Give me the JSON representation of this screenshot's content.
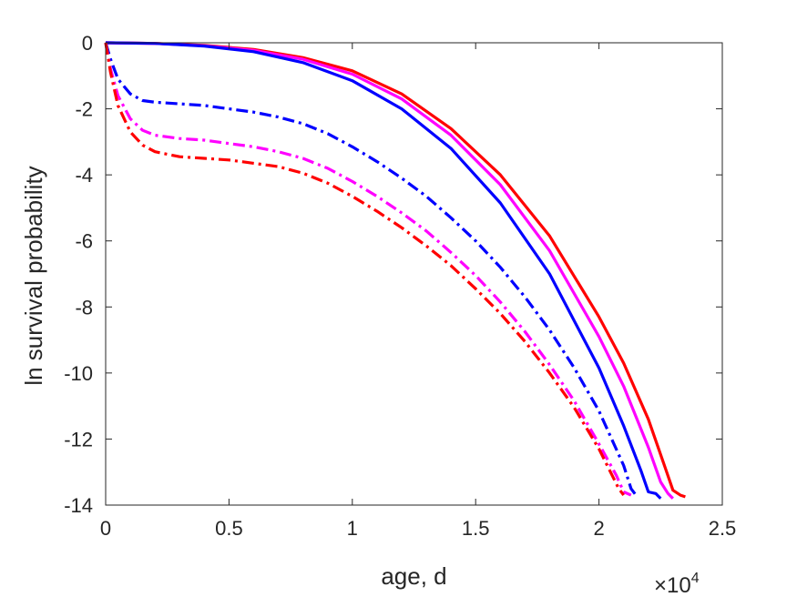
{
  "chart_data": {
    "type": "line",
    "title": "",
    "xlabel": "age, d",
    "ylabel": "ln survival probability",
    "x_multiplier": "×10",
    "x_multiplier_exp": "4",
    "xlim": [
      0,
      25000
    ],
    "ylim": [
      -14,
      0
    ],
    "x_ticks": [
      0,
      5000,
      10000,
      15000,
      20000,
      25000
    ],
    "x_tick_labels": [
      "0",
      "0.5",
      "1",
      "1.5",
      "2",
      "2.5"
    ],
    "y_ticks": [
      0,
      -2,
      -4,
      -6,
      -8,
      -10,
      -12,
      -14
    ],
    "y_tick_labels": [
      "0",
      "-2",
      "-4",
      "-6",
      "-8",
      "-10",
      "-12",
      "-14"
    ],
    "grid": false,
    "legend": "none",
    "series": [
      {
        "color": "#ff0000",
        "style": "solid",
        "x": [
          0,
          2000,
          4000,
          6000,
          8000,
          10000,
          12000,
          14000,
          16000,
          18000,
          20000,
          21000,
          22000,
          22700,
          23000,
          23300,
          23500
        ],
        "y": [
          0,
          -0.02,
          -0.08,
          -0.2,
          -0.45,
          -0.85,
          -1.55,
          -2.6,
          -4.0,
          -5.85,
          -8.3,
          -9.7,
          -11.4,
          -12.9,
          -13.55,
          -13.7,
          -13.75
        ]
      },
      {
        "color": "#ff00ff",
        "style": "solid",
        "x": [
          0,
          2000,
          4000,
          6000,
          8000,
          10000,
          12000,
          14000,
          16000,
          18000,
          20000,
          21000,
          22000,
          22500,
          22800,
          23000
        ],
        "y": [
          0,
          -0.02,
          -0.09,
          -0.23,
          -0.5,
          -0.95,
          -1.7,
          -2.8,
          -4.3,
          -6.3,
          -8.9,
          -10.4,
          -12.25,
          -13.3,
          -13.65,
          -13.8
        ]
      },
      {
        "color": "#0000ff",
        "style": "solid",
        "x": [
          0,
          2000,
          4000,
          6000,
          8000,
          10000,
          12000,
          14000,
          16000,
          18000,
          20000,
          21000,
          21700,
          22000,
          22300,
          22500
        ],
        "y": [
          0,
          -0.02,
          -0.1,
          -0.27,
          -0.6,
          -1.15,
          -2.0,
          -3.2,
          -4.85,
          -7.0,
          -9.85,
          -11.6,
          -12.95,
          -13.6,
          -13.65,
          -13.8
        ]
      },
      {
        "color": "#0000ff",
        "style": "dashdot",
        "x": [
          0,
          200,
          500,
          1000,
          1500,
          2000,
          3000,
          4000,
          5000,
          6000,
          7000,
          8000,
          9000,
          10000,
          11000,
          12000,
          13000,
          14000,
          15000,
          16000,
          17000,
          18000,
          19000,
          20000,
          21000,
          21300,
          21500
        ],
        "y": [
          0,
          -0.5,
          -1.1,
          -1.55,
          -1.75,
          -1.8,
          -1.85,
          -1.9,
          -2.0,
          -2.1,
          -2.25,
          -2.45,
          -2.75,
          -3.15,
          -3.6,
          -4.1,
          -4.65,
          -5.3,
          -6.0,
          -6.8,
          -7.7,
          -8.7,
          -9.85,
          -11.15,
          -12.8,
          -13.5,
          -13.7
        ]
      },
      {
        "color": "#ff00ff",
        "style": "dashdot",
        "x": [
          0,
          200,
          500,
          1000,
          1500,
          2000,
          3000,
          4000,
          5000,
          6000,
          7000,
          8000,
          9000,
          10000,
          11000,
          12000,
          13000,
          14000,
          15000,
          16000,
          17000,
          18000,
          19000,
          20000,
          20700,
          21000,
          21300
        ],
        "y": [
          0,
          -0.8,
          -1.6,
          -2.3,
          -2.65,
          -2.8,
          -2.9,
          -2.95,
          -3.05,
          -3.15,
          -3.3,
          -3.5,
          -3.8,
          -4.2,
          -4.65,
          -5.15,
          -5.7,
          -6.35,
          -7.05,
          -7.85,
          -8.75,
          -9.75,
          -10.85,
          -12.15,
          -13.1,
          -13.6,
          -13.7
        ]
      },
      {
        "color": "#ff0000",
        "style": "dashdot",
        "x": [
          0,
          200,
          500,
          1000,
          1500,
          2000,
          3000,
          4000,
          5000,
          6000,
          7000,
          8000,
          9000,
          10000,
          11000,
          12000,
          13000,
          14000,
          15000,
          16000,
          17000,
          18000,
          19000,
          20000,
          20800,
          21000
        ],
        "y": [
          0,
          -0.9,
          -1.9,
          -2.7,
          -3.1,
          -3.3,
          -3.45,
          -3.5,
          -3.55,
          -3.65,
          -3.75,
          -3.95,
          -4.25,
          -4.65,
          -5.1,
          -5.6,
          -6.15,
          -6.75,
          -7.45,
          -8.2,
          -9.05,
          -10.0,
          -11.05,
          -12.3,
          -13.5,
          -13.7
        ]
      }
    ]
  }
}
